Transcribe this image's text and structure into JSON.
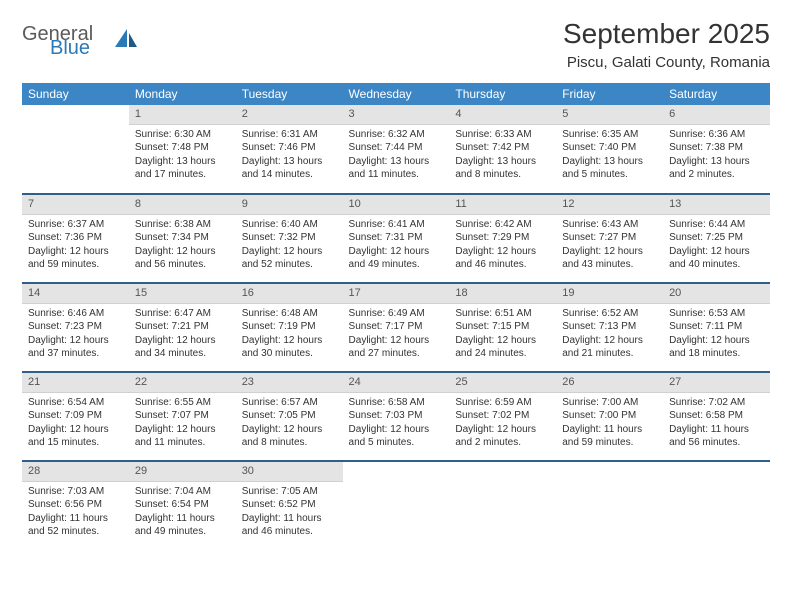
{
  "brand": {
    "word1": "General",
    "word2": "Blue"
  },
  "title": "September 2025",
  "location": "Piscu, Galati County, Romania",
  "colors": {
    "header_bg": "#3d86c6",
    "header_text": "#ffffff",
    "daynum_bg": "#e4e4e4",
    "sep": "#2f5f8a",
    "logo_gray": "#5a5a5a",
    "logo_blue": "#2a7ab8"
  },
  "weekdays": [
    "Sunday",
    "Monday",
    "Tuesday",
    "Wednesday",
    "Thursday",
    "Friday",
    "Saturday"
  ],
  "weeks": [
    [
      {
        "n": "",
        "lines": []
      },
      {
        "n": "1",
        "lines": [
          "Sunrise: 6:30 AM",
          "Sunset: 7:48 PM",
          "Daylight: 13 hours and 17 minutes."
        ]
      },
      {
        "n": "2",
        "lines": [
          "Sunrise: 6:31 AM",
          "Sunset: 7:46 PM",
          "Daylight: 13 hours and 14 minutes."
        ]
      },
      {
        "n": "3",
        "lines": [
          "Sunrise: 6:32 AM",
          "Sunset: 7:44 PM",
          "Daylight: 13 hours and 11 minutes."
        ]
      },
      {
        "n": "4",
        "lines": [
          "Sunrise: 6:33 AM",
          "Sunset: 7:42 PM",
          "Daylight: 13 hours and 8 minutes."
        ]
      },
      {
        "n": "5",
        "lines": [
          "Sunrise: 6:35 AM",
          "Sunset: 7:40 PM",
          "Daylight: 13 hours and 5 minutes."
        ]
      },
      {
        "n": "6",
        "lines": [
          "Sunrise: 6:36 AM",
          "Sunset: 7:38 PM",
          "Daylight: 13 hours and 2 minutes."
        ]
      }
    ],
    [
      {
        "n": "7",
        "lines": [
          "Sunrise: 6:37 AM",
          "Sunset: 7:36 PM",
          "Daylight: 12 hours and 59 minutes."
        ]
      },
      {
        "n": "8",
        "lines": [
          "Sunrise: 6:38 AM",
          "Sunset: 7:34 PM",
          "Daylight: 12 hours and 56 minutes."
        ]
      },
      {
        "n": "9",
        "lines": [
          "Sunrise: 6:40 AM",
          "Sunset: 7:32 PM",
          "Daylight: 12 hours and 52 minutes."
        ]
      },
      {
        "n": "10",
        "lines": [
          "Sunrise: 6:41 AM",
          "Sunset: 7:31 PM",
          "Daylight: 12 hours and 49 minutes."
        ]
      },
      {
        "n": "11",
        "lines": [
          "Sunrise: 6:42 AM",
          "Sunset: 7:29 PM",
          "Daylight: 12 hours and 46 minutes."
        ]
      },
      {
        "n": "12",
        "lines": [
          "Sunrise: 6:43 AM",
          "Sunset: 7:27 PM",
          "Daylight: 12 hours and 43 minutes."
        ]
      },
      {
        "n": "13",
        "lines": [
          "Sunrise: 6:44 AM",
          "Sunset: 7:25 PM",
          "Daylight: 12 hours and 40 minutes."
        ]
      }
    ],
    [
      {
        "n": "14",
        "lines": [
          "Sunrise: 6:46 AM",
          "Sunset: 7:23 PM",
          "Daylight: 12 hours and 37 minutes."
        ]
      },
      {
        "n": "15",
        "lines": [
          "Sunrise: 6:47 AM",
          "Sunset: 7:21 PM",
          "Daylight: 12 hours and 34 minutes."
        ]
      },
      {
        "n": "16",
        "lines": [
          "Sunrise: 6:48 AM",
          "Sunset: 7:19 PM",
          "Daylight: 12 hours and 30 minutes."
        ]
      },
      {
        "n": "17",
        "lines": [
          "Sunrise: 6:49 AM",
          "Sunset: 7:17 PM",
          "Daylight: 12 hours and 27 minutes."
        ]
      },
      {
        "n": "18",
        "lines": [
          "Sunrise: 6:51 AM",
          "Sunset: 7:15 PM",
          "Daylight: 12 hours and 24 minutes."
        ]
      },
      {
        "n": "19",
        "lines": [
          "Sunrise: 6:52 AM",
          "Sunset: 7:13 PM",
          "Daylight: 12 hours and 21 minutes."
        ]
      },
      {
        "n": "20",
        "lines": [
          "Sunrise: 6:53 AM",
          "Sunset: 7:11 PM",
          "Daylight: 12 hours and 18 minutes."
        ]
      }
    ],
    [
      {
        "n": "21",
        "lines": [
          "Sunrise: 6:54 AM",
          "Sunset: 7:09 PM",
          "Daylight: 12 hours and 15 minutes."
        ]
      },
      {
        "n": "22",
        "lines": [
          "Sunrise: 6:55 AM",
          "Sunset: 7:07 PM",
          "Daylight: 12 hours and 11 minutes."
        ]
      },
      {
        "n": "23",
        "lines": [
          "Sunrise: 6:57 AM",
          "Sunset: 7:05 PM",
          "Daylight: 12 hours and 8 minutes."
        ]
      },
      {
        "n": "24",
        "lines": [
          "Sunrise: 6:58 AM",
          "Sunset: 7:03 PM",
          "Daylight: 12 hours and 5 minutes."
        ]
      },
      {
        "n": "25",
        "lines": [
          "Sunrise: 6:59 AM",
          "Sunset: 7:02 PM",
          "Daylight: 12 hours and 2 minutes."
        ]
      },
      {
        "n": "26",
        "lines": [
          "Sunrise: 7:00 AM",
          "Sunset: 7:00 PM",
          "Daylight: 11 hours and 59 minutes."
        ]
      },
      {
        "n": "27",
        "lines": [
          "Sunrise: 7:02 AM",
          "Sunset: 6:58 PM",
          "Daylight: 11 hours and 56 minutes."
        ]
      }
    ],
    [
      {
        "n": "28",
        "lines": [
          "Sunrise: 7:03 AM",
          "Sunset: 6:56 PM",
          "Daylight: 11 hours and 52 minutes."
        ]
      },
      {
        "n": "29",
        "lines": [
          "Sunrise: 7:04 AM",
          "Sunset: 6:54 PM",
          "Daylight: 11 hours and 49 minutes."
        ]
      },
      {
        "n": "30",
        "lines": [
          "Sunrise: 7:05 AM",
          "Sunset: 6:52 PM",
          "Daylight: 11 hours and 46 minutes."
        ]
      },
      {
        "n": "",
        "lines": []
      },
      {
        "n": "",
        "lines": []
      },
      {
        "n": "",
        "lines": []
      },
      {
        "n": "",
        "lines": []
      }
    ]
  ]
}
